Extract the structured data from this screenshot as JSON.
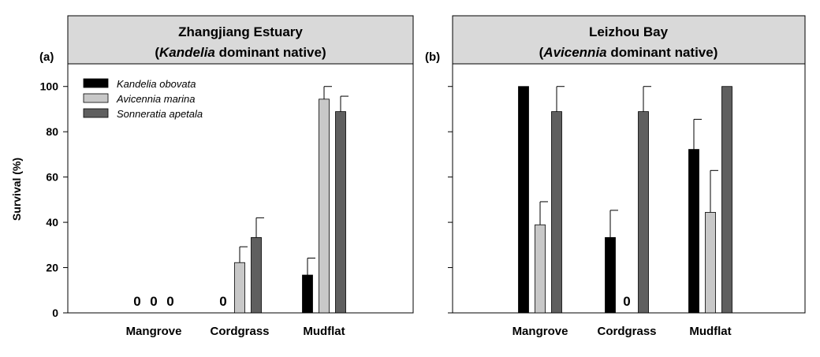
{
  "colors": {
    "series": [
      "#000000",
      "#c8c8c8",
      "#5f5f5f"
    ],
    "header_bg": "#d9d9d9",
    "frame": "#000000"
  },
  "y_axis_title": "Survival (%)",
  "chart_data": [
    {
      "type": "bar",
      "panel_label": "(a)",
      "title_line1": "Zhangjiang Estuary",
      "title_line2_prefix": "(",
      "title_line2_italic": "Kandelia",
      "title_line2_suffix": " dominant native)",
      "ylabel": "Survival (%)",
      "ylim": [
        0,
        110
      ],
      "yticks": [
        0,
        20,
        40,
        60,
        80,
        100
      ],
      "ytick_labels": [
        "0",
        "20",
        "40",
        "60",
        "80",
        "100"
      ],
      "categories": [
        "Mangrove",
        "Cordgrass",
        "Mudflat"
      ],
      "legend": {
        "position": "top-left"
      },
      "series": [
        {
          "name": "Kandelia obovata",
          "values": [
            0,
            0,
            16.7
          ],
          "errors": [
            0,
            0,
            7.5
          ],
          "zero_labels": [
            "0",
            "0",
            null
          ]
        },
        {
          "name": "Avicennia marina",
          "values": [
            0,
            22.2,
            94.4
          ],
          "errors": [
            0,
            7.0,
            5.6
          ],
          "zero_labels": [
            "0",
            null,
            null
          ]
        },
        {
          "name": "Sonneratia apetala",
          "values": [
            0,
            33.3,
            88.9
          ],
          "errors": [
            0,
            8.7,
            6.8
          ],
          "zero_labels": [
            "0",
            null,
            null
          ]
        }
      ]
    },
    {
      "type": "bar",
      "panel_label": "(b)",
      "title_line1": "Leizhou Bay",
      "title_line2_prefix": "(",
      "title_line2_italic": "Avicennia",
      "title_line2_suffix": " dominant native)",
      "ylabel": "",
      "ylim": [
        0,
        110
      ],
      "yticks": [
        0,
        20,
        40,
        60,
        80,
        100
      ],
      "ytick_labels": [],
      "categories": [
        "Mangrove",
        "Cordgrass",
        "Mudflat"
      ],
      "series": [
        {
          "name": "Kandelia obovata",
          "values": [
            100,
            33.3,
            72.2
          ],
          "errors": [
            0,
            12.0,
            13.3
          ],
          "zero_labels": [
            null,
            null,
            null
          ]
        },
        {
          "name": "Avicennia marina",
          "values": [
            38.9,
            0,
            44.4
          ],
          "errors": [
            10.2,
            0,
            18.5
          ],
          "zero_labels": [
            null,
            "0",
            null
          ]
        },
        {
          "name": "Sonneratia apetala",
          "values": [
            88.9,
            88.9,
            100
          ],
          "errors": [
            11.1,
            11.1,
            0
          ],
          "zero_labels": [
            null,
            null,
            null
          ]
        }
      ]
    }
  ]
}
